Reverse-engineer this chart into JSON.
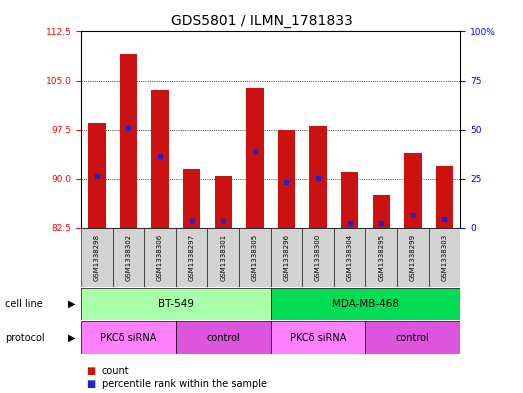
{
  "title": "GDS5801 / ILMN_1781833",
  "samples": [
    "GSM1338298",
    "GSM1338302",
    "GSM1338306",
    "GSM1338297",
    "GSM1338301",
    "GSM1338305",
    "GSM1338296",
    "GSM1338300",
    "GSM1338304",
    "GSM1338295",
    "GSM1338299",
    "GSM1338303"
  ],
  "bar_tops": [
    98.5,
    109.0,
    103.5,
    91.5,
    90.5,
    103.8,
    97.5,
    98.0,
    91.0,
    87.5,
    94.0,
    92.0
  ],
  "bar_bottom": 82.5,
  "blue_dot_values": [
    90.5,
    97.8,
    93.5,
    83.5,
    83.5,
    94.2,
    89.5,
    90.2,
    83.2,
    83.2,
    84.5,
    83.8
  ],
  "ylim_left": [
    82.5,
    112.5
  ],
  "ylim_right": [
    0,
    100
  ],
  "yticks_left": [
    82.5,
    90.0,
    97.5,
    105.0,
    112.5
  ],
  "yticks_right": [
    0,
    25,
    50,
    75,
    100
  ],
  "bar_color": "#cc1111",
  "dot_color": "#2222cc",
  "cell_line_groups": [
    {
      "label": "BT-549",
      "start": 0,
      "end": 6,
      "color": "#aaffaa"
    },
    {
      "label": "MDA-MB-468",
      "start": 6,
      "end": 12,
      "color": "#00dd55"
    }
  ],
  "protocol_groups": [
    {
      "label": "PKCδ siRNA",
      "start": 0,
      "end": 3,
      "color": "#ff80ff"
    },
    {
      "label": "control",
      "start": 3,
      "end": 6,
      "color": "#dd55dd"
    },
    {
      "label": "PKCδ siRNA",
      "start": 6,
      "end": 9,
      "color": "#ff80ff"
    },
    {
      "label": "control",
      "start": 9,
      "end": 12,
      "color": "#dd55dd"
    }
  ],
  "bar_width": 0.55,
  "grid_color": "black",
  "title_fontsize": 10,
  "tick_fontsize": 6.5,
  "sample_fontsize": 5.0,
  "label_fontsize": 7.5
}
